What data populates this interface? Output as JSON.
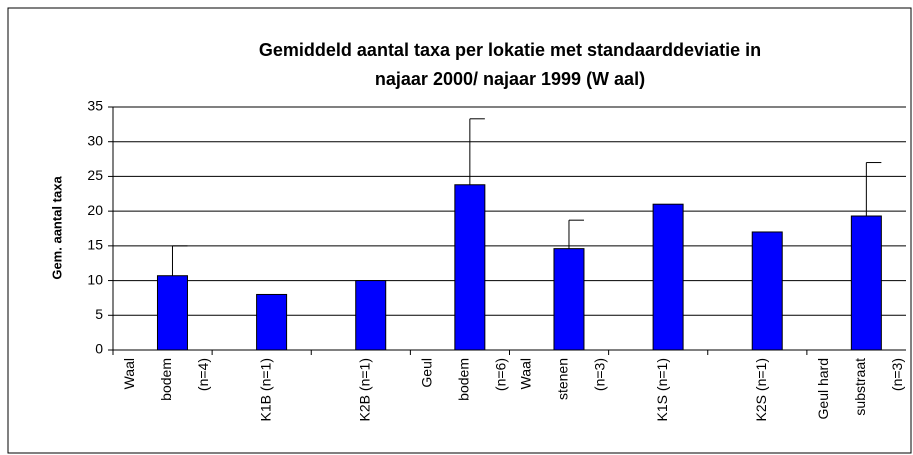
{
  "chart_data": {
    "type": "bar",
    "title": [
      "Gemiddeld aantal taxa per lokatie met standaarddeviatie in",
      "najaar 2000/ najaar 1999 (W aal)"
    ],
    "y_label": "Gem. aantal taxa",
    "categories": [
      [
        "Waal",
        "bodem",
        "(n=4)"
      ],
      [
        "K1B (n=1)"
      ],
      [
        "K2B (n=1)"
      ],
      [
        "Geul",
        "bodem",
        "(n=6)"
      ],
      [
        "Waal",
        "stenen",
        "(n=3)"
      ],
      [
        "K1S (n=1)"
      ],
      [
        "K2S (n=1)"
      ],
      [
        "Geul hard",
        "substraat",
        "(n=3)"
      ]
    ],
    "values": [
      10.7,
      8,
      10,
      23.8,
      14.6,
      21,
      17,
      19.3
    ],
    "errors": [
      4.3,
      null,
      null,
      9.5,
      4.1,
      null,
      null,
      7.7
    ],
    "color": "#0000ff",
    "ylim": [
      0,
      35
    ],
    "yticks": [
      0,
      5,
      10,
      15,
      20,
      25,
      30,
      35
    ],
    "grid": true
  }
}
